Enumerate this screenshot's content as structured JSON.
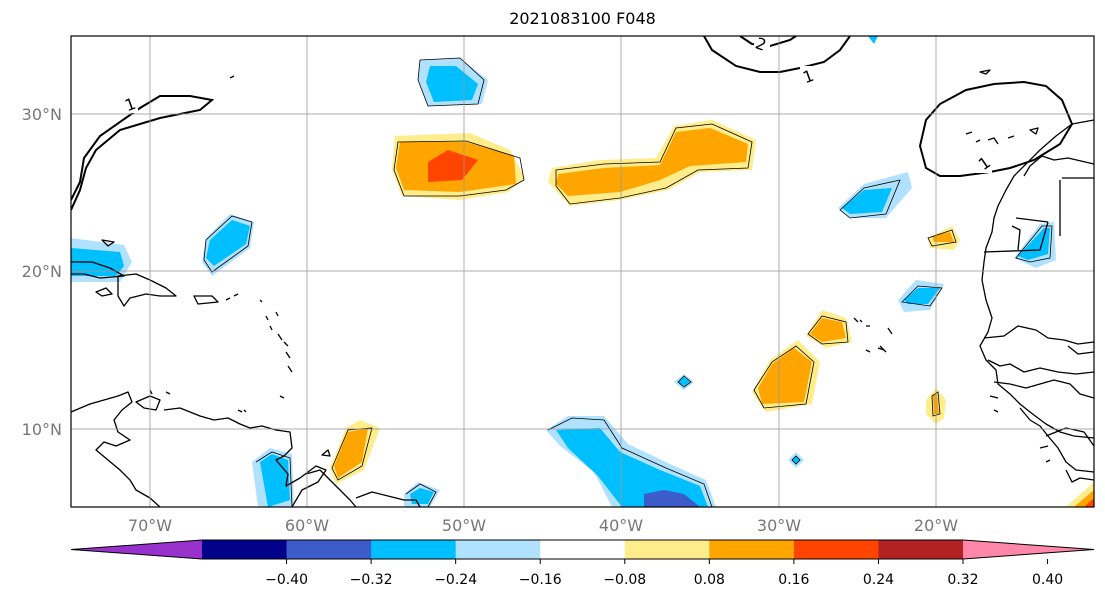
{
  "title": "2021083100 F048",
  "axes": {
    "x_ticks": [
      "70°W",
      "60°W",
      "50°W",
      "40°W",
      "30°W",
      "20°W"
    ],
    "x_tick_values": [
      -70,
      -60,
      -50,
      -40,
      -30,
      -20
    ],
    "y_ticks": [
      "30°N",
      "20°N",
      "10°N"
    ],
    "y_tick_values": [
      30,
      20,
      10
    ],
    "lon_range": [
      -75,
      -10
    ],
    "lat_range": [
      5,
      35
    ],
    "grid": true
  },
  "contour_labels": [
    "1",
    "2",
    "1",
    "1"
  ],
  "colorbar": {
    "colors": [
      "#9932cc",
      "#00008b",
      "#3b5cc9",
      "#00bfff",
      "#b0e2ff",
      "#ffffff",
      "#ffec8b",
      "#ffa500",
      "#ff4500",
      "#b22222",
      "#ff88aa"
    ],
    "tick_labels": [
      "−0.40",
      "−0.32",
      "−0.24",
      "−0.16",
      "−0.08",
      "0.08",
      "0.16",
      "0.24",
      "0.32",
      "0.40"
    ],
    "extend": "both"
  }
}
